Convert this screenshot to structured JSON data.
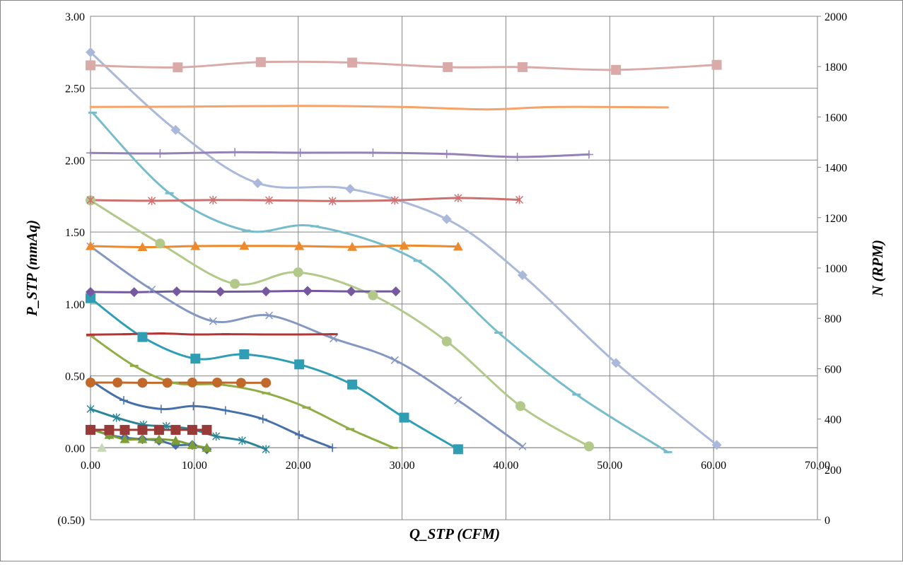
{
  "chart_data": {
    "type": "line",
    "title": "",
    "xlabel": "Q_STP (CFM)",
    "ylabel": "P_STP (mmAq)",
    "y2label": "N (RPM)",
    "xlim": [
      0,
      70
    ],
    "ylim": [
      -0.5,
      3.0
    ],
    "y2lim": [
      0,
      2000
    ],
    "grid": true,
    "legend": "none",
    "x_ticks": [
      "0.00",
      "10.00",
      "20.00",
      "30.00",
      "40.00",
      "50.00",
      "60.00",
      "70.00"
    ],
    "y_ticks": [
      "(0.50)",
      "0.00",
      "0.50",
      "1.00",
      "1.50",
      "2.00",
      "2.50",
      "3.00"
    ],
    "y2_ticks": [
      "0",
      "200",
      "400",
      "600",
      "800",
      "1000",
      "1200",
      "1400",
      "1600",
      "1800",
      "2000"
    ],
    "negative_tick_color": "#ff0000",
    "series": [
      {
        "axis": "left",
        "color": "#aab9d9",
        "marker": "diamond",
        "x": [
          0.0,
          8.2,
          16.1,
          25.0,
          34.3,
          41.6,
          50.6,
          60.3
        ],
        "y": [
          2.75,
          2.21,
          1.84,
          1.8,
          1.59,
          1.2,
          0.59,
          0.02
        ]
      },
      {
        "axis": "left",
        "color": "#77bccc",
        "marker": "dash",
        "x": [
          0.2,
          7.6,
          15.0,
          21.6,
          31.5,
          39.3,
          46.8,
          55.6
        ],
        "y": [
          2.33,
          1.77,
          1.51,
          1.54,
          1.3,
          0.8,
          0.37,
          -0.03
        ]
      },
      {
        "axis": "left",
        "color": "#b2c989",
        "marker": "circle",
        "x": [
          0.0,
          6.7,
          13.9,
          20.0,
          27.2,
          34.3,
          41.4,
          48.0
        ],
        "y": [
          1.72,
          1.42,
          1.14,
          1.22,
          1.06,
          0.74,
          0.29,
          0.01
        ]
      },
      {
        "axis": "left",
        "color": "#8497c2",
        "marker": "x",
        "x": [
          0.0,
          5.9,
          11.8,
          17.2,
          23.4,
          29.3,
          35.4,
          41.6
        ],
        "y": [
          1.4,
          1.1,
          0.88,
          0.92,
          0.76,
          0.61,
          0.33,
          0.01
        ]
      },
      {
        "axis": "left",
        "color": "#2f9eb5",
        "marker": "square",
        "x": [
          0.0,
          5.0,
          10.1,
          14.8,
          20.1,
          25.2,
          30.2,
          35.4
        ],
        "y": [
          1.04,
          0.77,
          0.62,
          0.65,
          0.58,
          0.44,
          0.21,
          -0.01
        ]
      },
      {
        "axis": "left",
        "color": "#90ae46",
        "marker": "dash",
        "x": [
          0.0,
          4.2,
          8.1,
          12.5,
          16.9,
          20.8,
          25.0,
          29.2
        ],
        "y": [
          0.78,
          0.57,
          0.45,
          0.44,
          0.38,
          0.28,
          0.13,
          0.0
        ]
      },
      {
        "axis": "left",
        "color": "#4670aa",
        "marker": "plus",
        "x": [
          0.0,
          3.2,
          6.8,
          9.9,
          13.0,
          16.6,
          20.1,
          23.3
        ],
        "y": [
          0.47,
          0.33,
          0.27,
          0.29,
          0.26,
          0.2,
          0.09,
          0.0
        ]
      },
      {
        "axis": "left",
        "color": "#2c8597",
        "marker": "star",
        "x": [
          0.0,
          2.5,
          5.1,
          7.3,
          9.7,
          12.1,
          14.6,
          16.9
        ],
        "y": [
          0.27,
          0.21,
          0.16,
          0.15,
          0.13,
          0.08,
          0.05,
          -0.01
        ]
      },
      {
        "axis": "left",
        "color": "#456ea7",
        "marker": "diamond",
        "x": [
          0.0,
          1.8,
          3.3,
          5.0,
          6.6,
          8.2,
          9.8,
          11.2
        ],
        "y": [
          0.13,
          0.09,
          0.07,
          0.06,
          0.05,
          0.02,
          0.02,
          -0.01
        ]
      },
      {
        "axis": "left",
        "color": "#7f9d37",
        "marker": "triangle",
        "x": [
          0.0,
          1.8,
          3.3,
          5.0,
          6.6,
          8.2,
          9.8,
          11.2
        ],
        "y": [
          0.13,
          0.09,
          0.06,
          0.06,
          0.06,
          0.05,
          0.02,
          0.0
        ]
      },
      {
        "axis": "left",
        "color": "#c8d9b8",
        "marker": "triangle",
        "x": [
          1.1
        ],
        "y": [
          0.0
        ]
      },
      {
        "axis": "right",
        "color": "#d9aaa7",
        "marker": "square",
        "x": [
          0.0,
          8.4,
          16.4,
          25.2,
          34.4,
          41.6,
          50.6,
          60.3
        ],
        "y": [
          1805,
          1797,
          1818,
          1816,
          1798,
          1798,
          1787,
          1807
        ]
      },
      {
        "axis": "right",
        "color": "#f7a267",
        "marker": "none",
        "x": [
          0.0,
          10.0,
          20.0,
          30.0,
          38.0,
          45.0,
          55.6
        ],
        "y": [
          1640,
          1641,
          1644,
          1640,
          1630,
          1640,
          1638
        ]
      },
      {
        "axis": "right",
        "color": "#9581b6",
        "marker": "plus",
        "x": [
          0.0,
          6.7,
          13.9,
          20.2,
          27.2,
          34.3,
          41.1,
          48.0
        ],
        "y": [
          1457,
          1455,
          1460,
          1458,
          1458,
          1453,
          1441,
          1451
        ]
      },
      {
        "axis": "right",
        "color": "#cd7070",
        "marker": "star",
        "x": [
          0.0,
          5.9,
          11.8,
          17.2,
          23.3,
          29.3,
          35.4,
          41.3
        ],
        "y": [
          1270,
          1267,
          1270,
          1269,
          1266,
          1269,
          1278,
          1271
        ]
      },
      {
        "axis": "right",
        "color": "#ec8a2d",
        "marker": "triangle",
        "x": [
          0.0,
          5.0,
          10.1,
          14.8,
          20.1,
          25.2,
          30.2,
          35.4
        ],
        "y": [
          1087,
          1083,
          1087,
          1088,
          1087,
          1084,
          1089,
          1085
        ]
      },
      {
        "axis": "right",
        "color": "#7558a0",
        "marker": "diamond",
        "x": [
          0.0,
          4.2,
          8.3,
          12.5,
          16.9,
          20.9,
          25.1,
          29.4
        ],
        "y": [
          905,
          904,
          907,
          906,
          907,
          909,
          907,
          907
        ]
      },
      {
        "axis": "right",
        "color": "#b33535",
        "marker": "dash",
        "x": [
          0.0,
          3.5,
          6.8,
          10.0,
          13.0,
          16.6,
          20.0,
          23.4
        ],
        "y": [
          735,
          737,
          740,
          736,
          737,
          736,
          736,
          737
        ]
      },
      {
        "axis": "right",
        "color": "#c0692a",
        "marker": "circle",
        "x": [
          0.0,
          2.6,
          5.0,
          7.4,
          9.8,
          12.2,
          14.5,
          16.9
        ],
        "y": [
          545,
          545,
          544,
          544,
          545,
          545,
          544,
          544
        ]
      },
      {
        "axis": "right",
        "color": "#983a38",
        "marker": "square",
        "x": [
          0.0,
          1.8,
          3.3,
          5.0,
          6.6,
          8.2,
          9.8,
          11.2
        ],
        "y": [
          357,
          357,
          357,
          357,
          357,
          357,
          357,
          357
        ]
      }
    ]
  }
}
